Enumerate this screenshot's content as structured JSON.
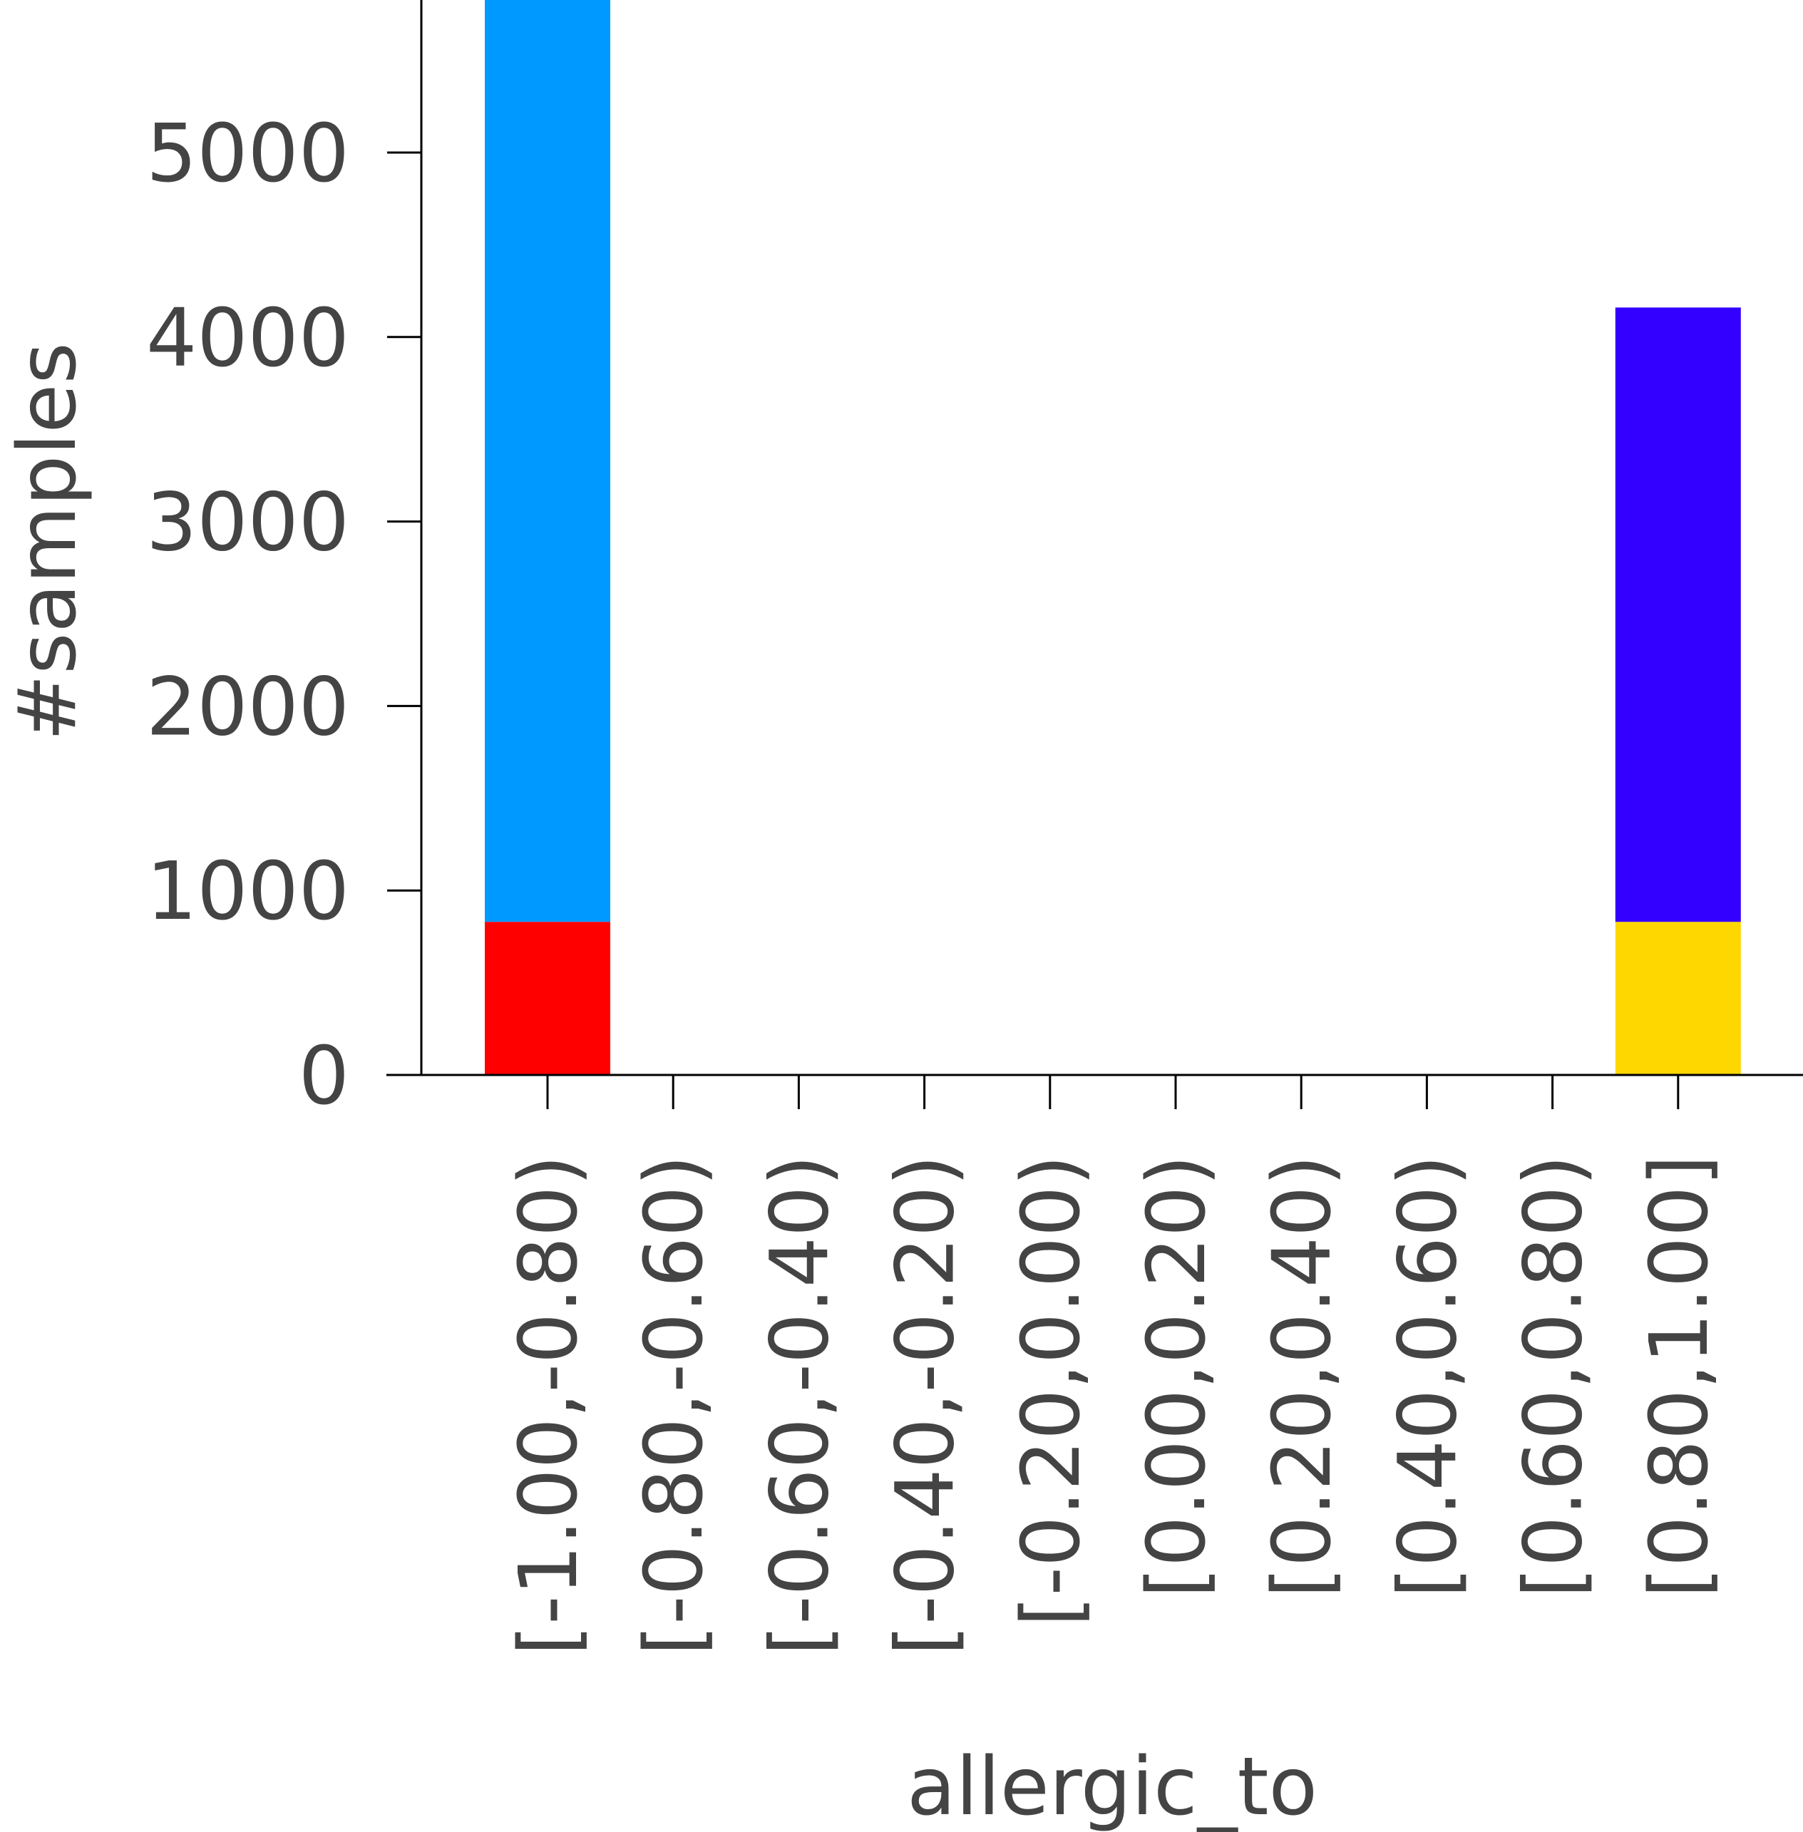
{
  "chart_data": {
    "type": "bar",
    "stacked": true,
    "title": "",
    "xlabel": "allergic_to",
    "ylabel": "#samples",
    "categories": [
      "[-1.00,-0.80)",
      "[-0.80,-0.60)",
      "[-0.60,-0.40)",
      "[-0.40,-0.20)",
      "[-0.20,0.00)",
      "[0.00,0.20)",
      "[0.20,0.40)",
      "[0.40,0.60)",
      "[0.60,0.80)",
      "[0.80,1.00]"
    ],
    "segments": [
      [
        {
          "value": 830,
          "color": "#ff0000"
        },
        {
          "value": 5000,
          "color": "#0099ff"
        }
      ],
      [],
      [],
      [],
      [],
      [],
      [],
      [],
      [],
      [
        {
          "value": 830,
          "color": "#ffd700"
        },
        {
          "value": 3330,
          "color": "#3300ff"
        }
      ]
    ],
    "yticks": [
      0,
      1000,
      2000,
      3000,
      4000,
      5000
    ],
    "ylim": [
      0,
      5830
    ],
    "grid": false,
    "legend": "none"
  }
}
